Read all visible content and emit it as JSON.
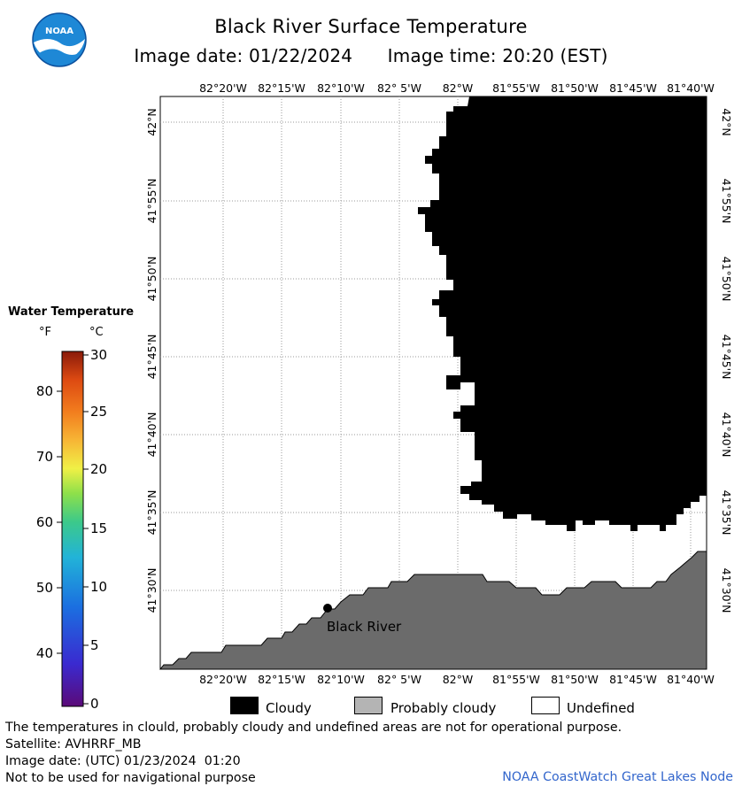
{
  "header": {
    "title": "Black River Surface Temperature",
    "image_date_label": "Image date: 01/22/2024",
    "image_time_label": "Image time: 20:20 (EST)",
    "logo_text": "NOAA"
  },
  "map": {
    "lon_ticks_top": [
      "82°20'W",
      "82°15'W",
      "82°10'W",
      "82° 5'W",
      "82°W",
      "81°55'W",
      "81°50'W",
      "81°45'W",
      "81°40'W"
    ],
    "lon_ticks_bottom": [
      "82°20'W",
      "82°15'W",
      "82°10'W",
      "82° 5'W",
      "82°W",
      "81°55'W",
      "81°50'W",
      "81°45'W",
      "81°40'W"
    ],
    "lat_ticks": [
      "42°N",
      "41°55'N",
      "41°50'N",
      "41°45'N",
      "41°40'N",
      "41°35'N",
      "41°30'N"
    ],
    "place_label": "Black River",
    "colors": {
      "cloudy": "#000000",
      "land": "#6b6b6b",
      "water_undefined": "#ffffff",
      "grid": "#999999"
    }
  },
  "legend": {
    "title": "Water Temperature",
    "unit_f": "°F",
    "unit_c": "°C",
    "f_ticks": [
      "80",
      "70",
      "60",
      "50",
      "40"
    ],
    "c_ticks": [
      "30",
      "25",
      "20",
      "15",
      "10",
      "5",
      "0"
    ],
    "colors": [
      "#5b0a78",
      "#3a2ad0",
      "#1b6fe0",
      "#22b3d8",
      "#3cc98a",
      "#8ee04a",
      "#f0f046",
      "#f7b535",
      "#f27d1e",
      "#dd4a12",
      "#8a1a0a"
    ]
  },
  "key": {
    "cloudy": "Cloudy",
    "probably_cloudy": "Probably cloudy",
    "undefined": "Undefined"
  },
  "footer": {
    "disclaimer": "The temperatures in clould, probably cloudy and undefined areas are not for operational purpose.",
    "satellite": "Satellite: AVHRRF_MB",
    "utc_date": "Image date: (UTC) 01/23/2024  01:20",
    "nav_warning": "Not to be used for navigational purpose",
    "credit": "NOAA CoastWatch Great Lakes Node"
  }
}
